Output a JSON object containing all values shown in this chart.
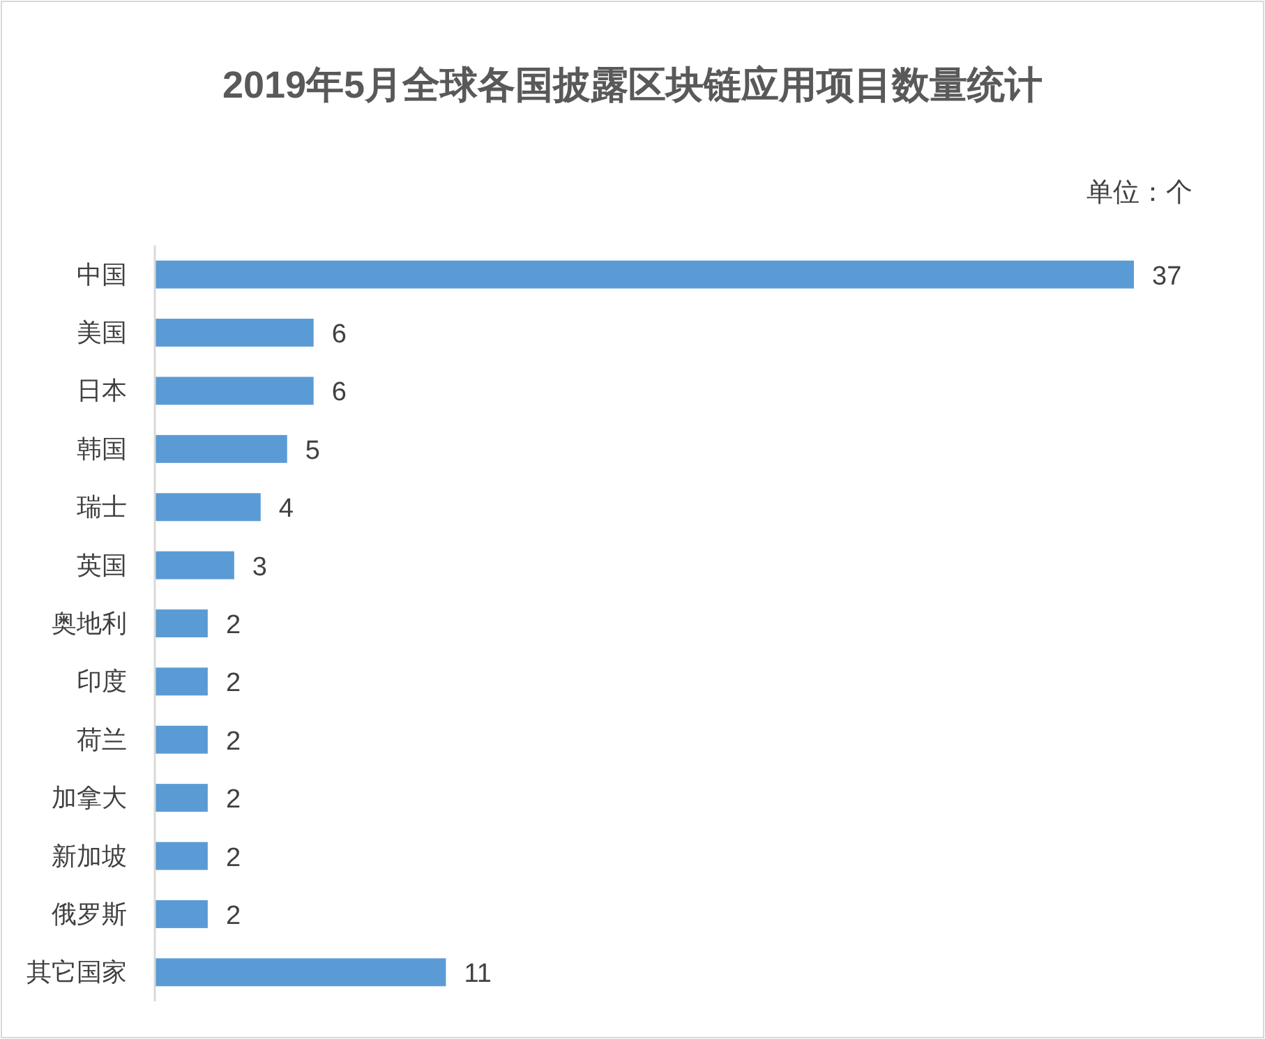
{
  "chart_data": {
    "type": "bar",
    "orientation": "horizontal",
    "title": "2019年5月全球各国披露区块链应用项目数量统计",
    "annotations": [
      "单位：个"
    ],
    "categories": [
      "中国",
      "美国",
      "日本",
      "韩国",
      "瑞士",
      "英国",
      "奥地利",
      "印度",
      "荷兰",
      "加拿大",
      "新加坡",
      "俄罗斯",
      "其它国家"
    ],
    "values": [
      37,
      6,
      6,
      5,
      4,
      3,
      2,
      2,
      2,
      2,
      2,
      2,
      11
    ],
    "color": "#5b9bd5",
    "data_labels": true
  }
}
